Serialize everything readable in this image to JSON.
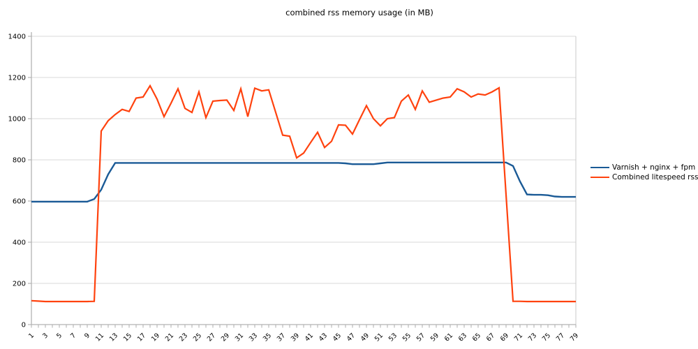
{
  "title": "combined rss memory usage (in MB)",
  "style": {
    "background": "#ffffff",
    "grid_color": "#d9d9d9",
    "border_color": "#c8c8c8",
    "axis_color": "#b3b3b3",
    "label_color": "#000000",
    "series1_color": "#1a5a96",
    "series2_color": "#ff420e"
  },
  "chart_data": {
    "type": "line",
    "title": "combined rss memory usage (in MB)",
    "xlabel": "",
    "ylabel": "",
    "ylim": [
      0,
      1400
    ],
    "ytick_step": 200,
    "y_ticks": [
      0,
      200,
      400,
      600,
      800,
      1000,
      1200,
      1400
    ],
    "grid": true,
    "legend_position": "right",
    "x_labels_shown": "odd values 1 through 79",
    "x": [
      1,
      2,
      3,
      4,
      5,
      6,
      7,
      8,
      9,
      10,
      11,
      12,
      13,
      14,
      15,
      16,
      17,
      18,
      19,
      20,
      21,
      22,
      23,
      24,
      25,
      26,
      27,
      28,
      29,
      30,
      31,
      32,
      33,
      34,
      35,
      36,
      37,
      38,
      39,
      40,
      41,
      42,
      43,
      44,
      45,
      46,
      47,
      48,
      49,
      50,
      51,
      52,
      53,
      54,
      55,
      56,
      57,
      58,
      59,
      60,
      61,
      62,
      63,
      64,
      65,
      66,
      67,
      68,
      69,
      70,
      71,
      72,
      73,
      74,
      75,
      76,
      77,
      78,
      79
    ],
    "series": [
      {
        "name": "Varnish + nginx + fpm rss",
        "color": "#1a5a96",
        "values": [
          597,
          597,
          597,
          597,
          597,
          597,
          597,
          597,
          597,
          610,
          655,
          730,
          785,
          785,
          785,
          785,
          785,
          785,
          785,
          785,
          785,
          785,
          785,
          785,
          785,
          785,
          785,
          785,
          785,
          785,
          785,
          785,
          785,
          785,
          785,
          785,
          785,
          785,
          785,
          785,
          785,
          785,
          785,
          785,
          785,
          783,
          779,
          779,
          779,
          779,
          783,
          787,
          787,
          787,
          787,
          787,
          787,
          787,
          787,
          787,
          787,
          787,
          787,
          787,
          787,
          787,
          787,
          787,
          787,
          770,
          695,
          632,
          630,
          630,
          628,
          622,
          620,
          620,
          620
        ]
      },
      {
        "name": "Combined litespeed rss",
        "color": "#ff420e",
        "values": [
          116,
          114,
          112,
          112,
          112,
          112,
          112,
          112,
          112,
          113,
          940,
          990,
          1020,
          1045,
          1035,
          1100,
          1105,
          1160,
          1095,
          1010,
          1075,
          1145,
          1050,
          1030,
          1130,
          1005,
          1085,
          1088,
          1090,
          1040,
          1145,
          1010,
          1148,
          1135,
          1140,
          1030,
          920,
          915,
          810,
          833,
          884,
          934,
          860,
          890,
          970,
          968,
          925,
          995,
          1063,
          1000,
          965,
          1000,
          1005,
          1085,
          1115,
          1045,
          1135,
          1080,
          1090,
          1100,
          1105,
          1145,
          1130,
          1105,
          1120,
          1115,
          1130,
          1150,
          630,
          113,
          113,
          112,
          112,
          112,
          112,
          112,
          112,
          112,
          112
        ]
      }
    ]
  }
}
